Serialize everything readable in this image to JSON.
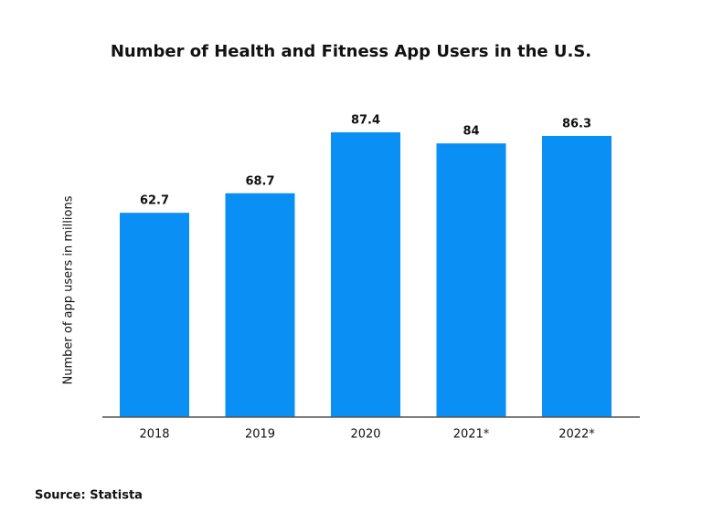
{
  "chart_data": {
    "type": "bar",
    "title": "Number of Health and Fitness App Users in the U.S.",
    "y_label": "Number of app users in millions",
    "categories": [
      "2018",
      "2019",
      "2020",
      "2021*",
      "2022*"
    ],
    "values": [
      62.7,
      68.7,
      87.4,
      84,
      86.3
    ],
    "color": "#0a8ff5",
    "source": "Source: Statista"
  }
}
